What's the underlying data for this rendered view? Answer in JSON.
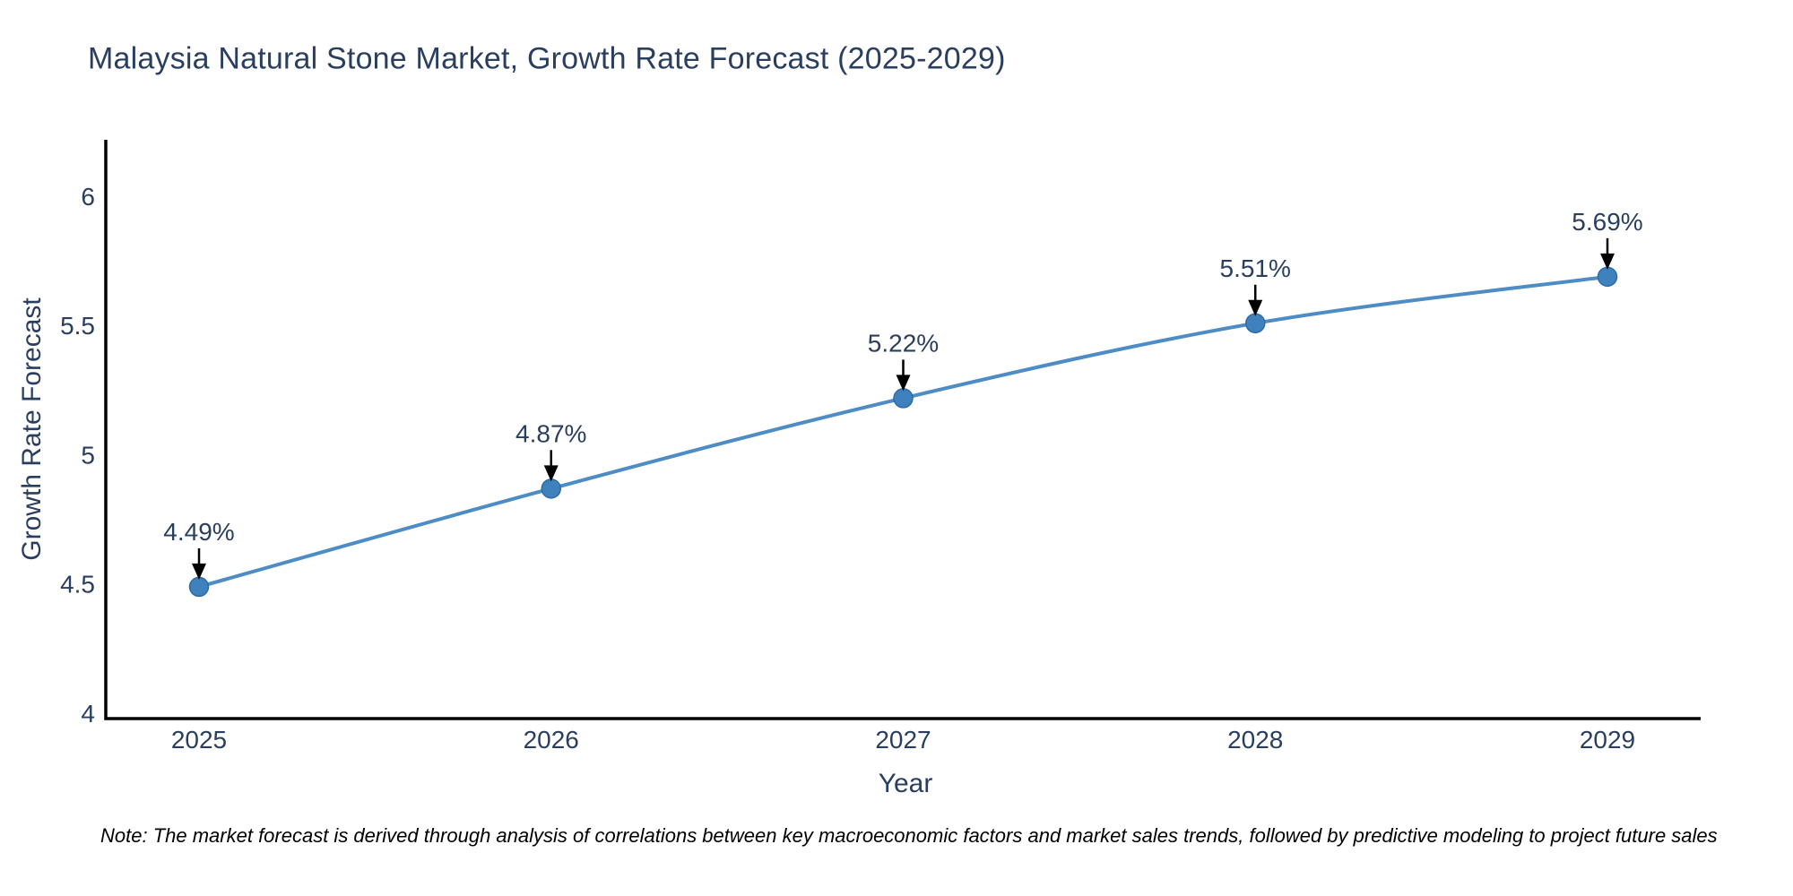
{
  "chart": {
    "title": "Malaysia Natural Stone Market, Growth Rate Forecast (2025-2029)",
    "xlabel": "Year",
    "ylabel": "Growth Rate Forecast",
    "note": "Note: The market forecast is derived through analysis of correlations between key macroeconomic factors and market sales trends, followed by predictive modeling to project future sales",
    "colors": {
      "line": "#4d8cc5",
      "marker_fill": "#3e81bd",
      "marker_edge": "#2e6ca8",
      "text": "#2a3f5f",
      "axis_line": "#000000",
      "arrow": "#000000",
      "note_text": "#000000",
      "background": "#ffffff"
    }
  },
  "chart_data": {
    "type": "line",
    "title": "Malaysia Natural Stone Market, Growth Rate Forecast (2025-2029)",
    "x": [
      "2025",
      "2026",
      "2027",
      "2028",
      "2029"
    ],
    "values": [
      4.49,
      4.87,
      5.22,
      5.51,
      5.69
    ],
    "point_labels": [
      "4.49%",
      "4.87%",
      "5.22%",
      "5.51%",
      "5.69%"
    ],
    "xlabel": "Year",
    "ylabel": "Growth Rate Forecast",
    "ytick_values": [
      4,
      4.5,
      5,
      5.5,
      6
    ],
    "ytick_labels": [
      "4",
      "4.5",
      "5",
      "5.5",
      "6"
    ],
    "ylim": [
      3.98,
      6.22
    ],
    "mode": "lines+markers",
    "line_shape": "spline",
    "grid": false,
    "legend_position": "none",
    "annotations": "black down-arrows from each percentage label to its data point"
  }
}
